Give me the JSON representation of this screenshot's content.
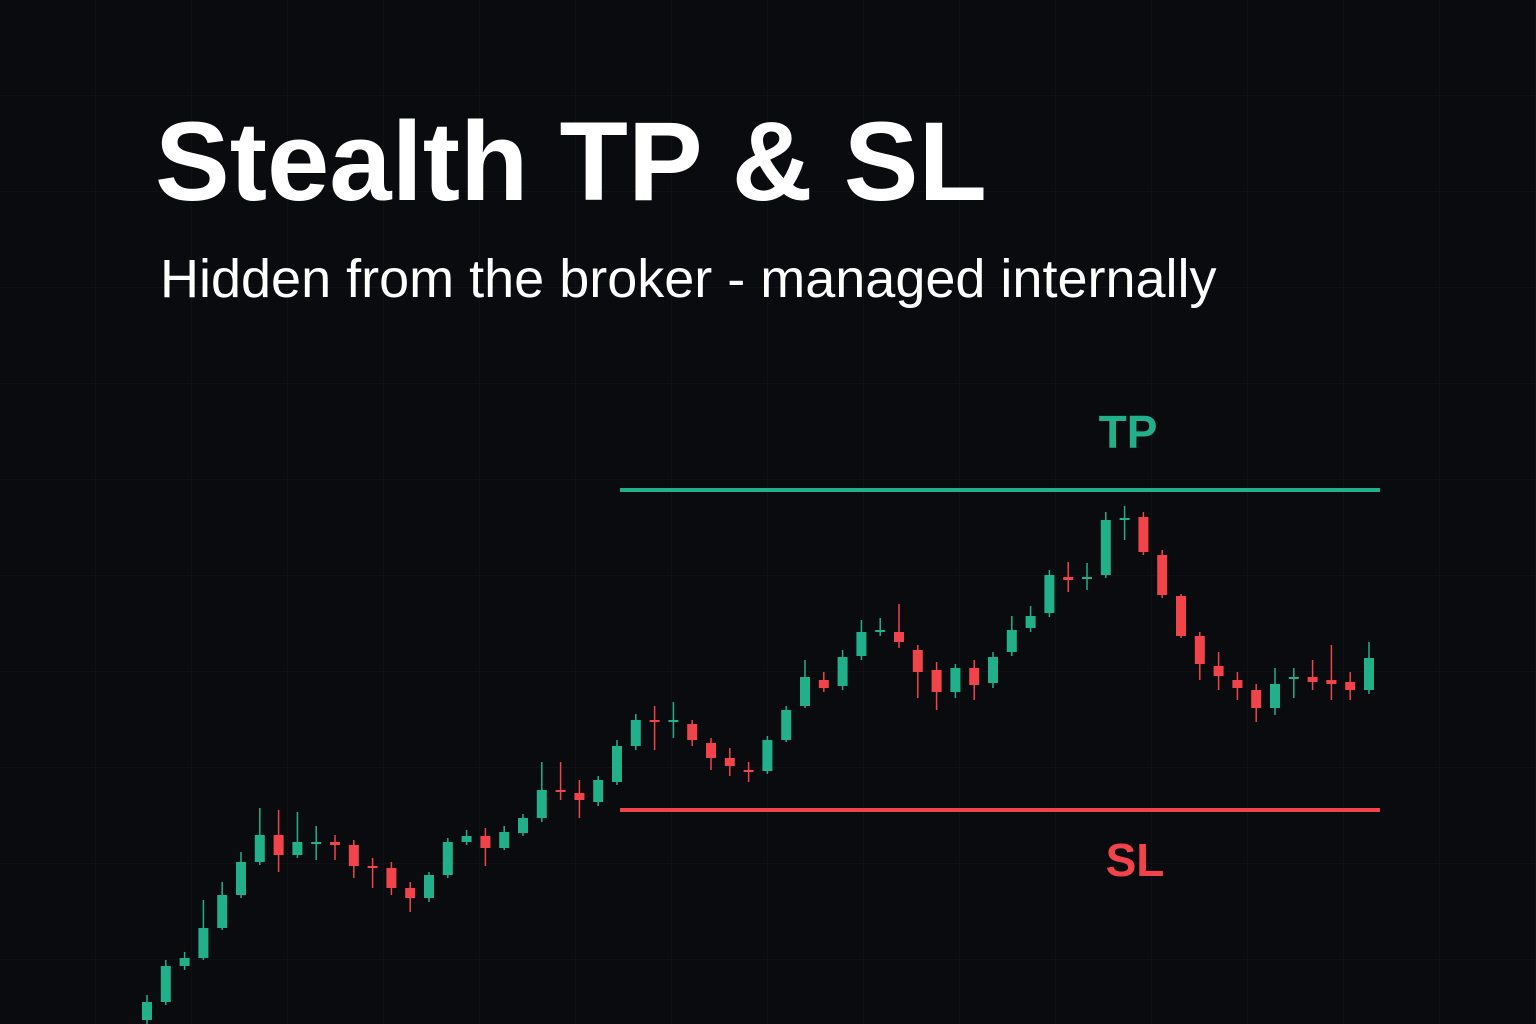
{
  "chart_data": {
    "type": "candlestick",
    "title": "Stealth TP & SL",
    "subtitle": "Hidden from the broker - managed internally",
    "up_color": "#22b08a",
    "down_color": "#f0434a",
    "ylim": [
      0,
      1024
    ],
    "levels": [
      {
        "label": "TP",
        "value": 534,
        "color": "#22b08a"
      },
      {
        "label": "SL",
        "value": 214,
        "color": "#f0434a"
      }
    ],
    "open": [
      4,
      22,
      58,
      66,
      96,
      129,
      162,
      189,
      169,
      181,
      182,
      179,
      158,
      156,
      136,
      126,
      149,
      182,
      188,
      176,
      191,
      206,
      234,
      231,
      222,
      242,
      278,
      304,
      303,
      300,
      281,
      266,
      254,
      253,
      284,
      318,
      344,
      338,
      368,
      392,
      392,
      374,
      354,
      332,
      356,
      341,
      372,
      396,
      411,
      447,
      445,
      449,
      504,
      507,
      469,
      428,
      388,
      358,
      344,
      334,
      316,
      346,
      347,
      344,
      342,
      334
    ],
    "high": [
      29,
      64,
      72,
      124,
      142,
      172,
      216,
      214,
      212,
      198,
      189,
      184,
      166,
      162,
      142,
      152,
      186,
      194,
      196,
      198,
      210,
      262,
      262,
      244,
      248,
      284,
      310,
      318,
      322,
      304,
      286,
      276,
      262,
      288,
      318,
      364,
      352,
      374,
      404,
      406,
      420,
      379,
      362,
      360,
      364,
      372,
      408,
      418,
      454,
      462,
      461,
      512,
      518,
      512,
      474,
      430,
      392,
      372,
      352,
      340,
      356,
      356,
      364,
      379,
      352,
      382
    ],
    "low": [
      0,
      19,
      54,
      64,
      94,
      126,
      159,
      152,
      166,
      164,
      164,
      146,
      136,
      129,
      112,
      122,
      146,
      179,
      158,
      174,
      188,
      202,
      224,
      206,
      218,
      239,
      274,
      274,
      286,
      278,
      254,
      248,
      242,
      250,
      282,
      316,
      332,
      334,
      364,
      388,
      376,
      326,
      314,
      326,
      324,
      336,
      368,
      392,
      407,
      432,
      434,
      446,
      484,
      469,
      426,
      386,
      344,
      334,
      324,
      302,
      309,
      326,
      334,
      324,
      324,
      330
    ],
    "close": [
      22,
      58,
      66,
      96,
      129,
      162,
      189,
      169,
      182,
      182,
      179,
      158,
      156,
      136,
      126,
      149,
      182,
      188,
      176,
      192,
      206,
      234,
      232,
      224,
      244,
      278,
      304,
      303,
      304,
      284,
      266,
      258,
      252,
      284,
      314,
      347,
      336,
      367,
      392,
      394,
      382,
      352,
      332,
      356,
      339,
      367,
      394,
      408,
      449,
      444,
      447,
      504,
      506,
      472,
      429,
      388,
      360,
      348,
      336,
      316,
      340,
      347,
      342,
      340,
      334,
      366
    ]
  }
}
